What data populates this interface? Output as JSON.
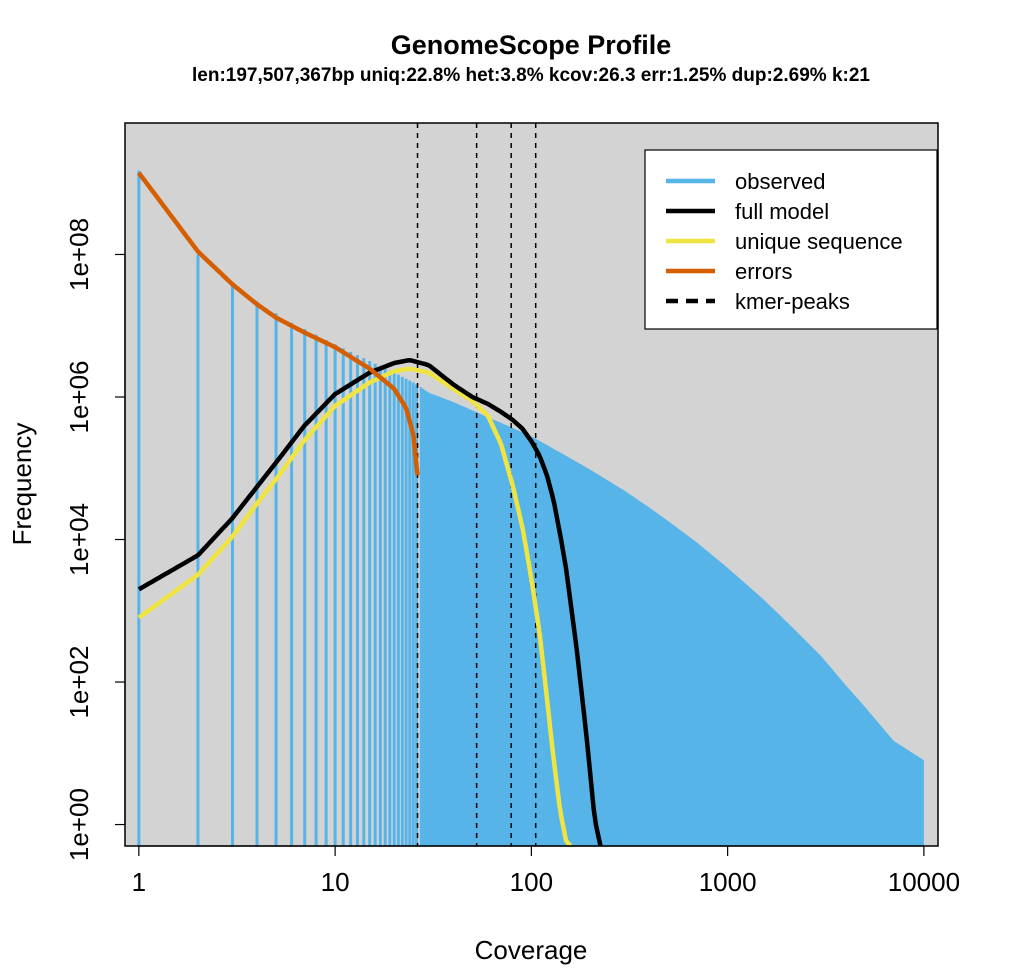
{
  "chart_data": {
    "type": "line",
    "title": "GenomeScope Profile",
    "subtitle": "len:197,507,367bp uniq:22.8%  het:3.8% kcov:26.3 err:1.25%  dup:2.69%  k:21",
    "xlabel": "Coverage",
    "ylabel": "Frequency",
    "x_scale": "log",
    "y_scale": "log",
    "xlim": [
      0.85,
      11800
    ],
    "ylim": [
      0.5,
      7000000000
    ],
    "x_ticks": [
      1,
      10,
      100,
      1000,
      10000
    ],
    "x_tick_labels": [
      "1",
      "10",
      "100",
      "1000",
      "10000"
    ],
    "y_ticks": [
      1,
      100,
      10000,
      1000000,
      100000000
    ],
    "y_tick_labels": [
      "1e+00",
      "1e+02",
      "1e+04",
      "1e+06",
      "1e+08"
    ],
    "background": "#d3d3d3",
    "legend_position": "top-right",
    "legend": [
      {
        "label": "observed",
        "color": "#56b4e9",
        "style": "solid"
      },
      {
        "label": "full model",
        "color": "#000000",
        "style": "solid"
      },
      {
        "label": "unique sequence",
        "color": "#f0e442",
        "style": "solid"
      },
      {
        "label": "errors",
        "color": "#d55e00",
        "style": "solid"
      },
      {
        "label": "kmer-peaks",
        "color": "#000000",
        "style": "dashed"
      }
    ],
    "series": [
      {
        "name": "observed",
        "color": "#56b4e9",
        "style": "histogram",
        "x": [
          1,
          2,
          3,
          4,
          5,
          6,
          7,
          8,
          9,
          10,
          12,
          15,
          18,
          20,
          23,
          25,
          27,
          30,
          40,
          50,
          60,
          80,
          100,
          150,
          200,
          300,
          400,
          500,
          700,
          1000,
          1500,
          2000,
          3000,
          4000,
          5000,
          7000,
          10000
        ],
        "values": [
          1500000000,
          100000000,
          40000000,
          22000000,
          15000000,
          11000000,
          9000000,
          7500000,
          6300000,
          5500000,
          4300000,
          3200000,
          2500000,
          2200000,
          1800000,
          1600000,
          1400000,
          1150000,
          850000,
          650000,
          520000,
          370000,
          280000,
          150000,
          95000,
          48000,
          28000,
          18000,
          9000,
          4000,
          1500,
          700,
          230,
          90,
          45,
          15,
          8
        ]
      },
      {
        "name": "full model",
        "color": "#000000",
        "x": [
          1,
          2,
          3,
          4,
          5,
          7,
          10,
          15,
          20,
          24,
          30,
          40,
          50,
          60,
          70,
          80,
          90,
          100,
          110,
          120,
          130,
          140,
          150,
          170,
          190,
          210,
          225
        ],
        "values": [
          2000,
          6000,
          20000,
          55000,
          120000,
          400000,
          1100000,
          2200000,
          3000000,
          3300000,
          2800000,
          1500000,
          1000000,
          800000,
          620000,
          480000,
          360000,
          240000,
          150000,
          80000,
          35000,
          12000,
          4000,
          300,
          20,
          1.2,
          0.5
        ]
      },
      {
        "name": "unique sequence",
        "color": "#f0e442",
        "x": [
          1,
          2,
          3,
          4,
          5,
          7,
          10,
          15,
          20,
          24,
          30,
          40,
          50,
          60,
          70,
          80,
          90,
          100,
          110,
          120,
          130,
          140,
          150,
          158
        ],
        "values": [
          800,
          3200,
          11000,
          32000,
          70000,
          250000,
          750000,
          1600000,
          2300000,
          2500000,
          2200000,
          1300000,
          880000,
          550000,
          220000,
          60000,
          15000,
          2800,
          500,
          60,
          8,
          1.6,
          0.6,
          0.5
        ]
      },
      {
        "name": "errors",
        "color": "#d55e00",
        "x": [
          1,
          2,
          3,
          4,
          5,
          7,
          10,
          15,
          20,
          23,
          25,
          26.3
        ],
        "values": [
          1400000000,
          110000000,
          38000000,
          20000000,
          13000000,
          8000000,
          5000000,
          2500000,
          1300000,
          700000,
          300000,
          80000
        ]
      }
    ],
    "kmer_peaks": [
      26.3,
      52.6,
      78.9,
      105.2
    ]
  }
}
